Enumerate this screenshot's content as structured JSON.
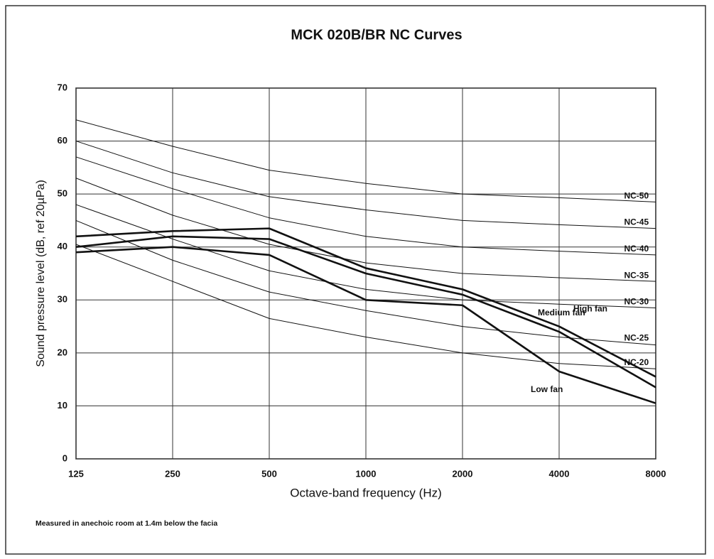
{
  "chart_data": {
    "type": "line",
    "title": "MCK 020B/BR  NC Curves",
    "xlabel": "Octave-band frequency (Hz)",
    "ylabel": "Sound pressure level (dB, ref 20µPa)",
    "note": "Measured in anechoic room at 1.4m below the facia",
    "categories": [
      "125",
      "250",
      "500",
      "1000",
      "2000",
      "4000",
      "8000"
    ],
    "ylim": [
      0,
      70
    ],
    "yticks": [
      0,
      10,
      20,
      30,
      40,
      50,
      60,
      70
    ],
    "grid": true,
    "series": [
      {
        "name": "NC-50",
        "color": "#111111",
        "line_width": 1,
        "values": [
          64,
          59,
          54.5,
          52,
          50,
          49.3,
          48.5
        ]
      },
      {
        "name": "NC-45",
        "color": "#111111",
        "line_width": 1,
        "values": [
          60,
          54,
          49.5,
          47,
          45,
          44.2,
          43.5
        ]
      },
      {
        "name": "NC-40",
        "color": "#111111",
        "line_width": 1,
        "values": [
          57,
          51,
          45.5,
          42,
          40,
          39.2,
          38.5
        ]
      },
      {
        "name": "NC-35",
        "color": "#111111",
        "line_width": 1,
        "values": [
          53,
          46,
          40.5,
          37,
          35,
          34.2,
          33.5
        ]
      },
      {
        "name": "NC-30",
        "color": "#111111",
        "line_width": 1,
        "values": [
          48,
          41.5,
          35.5,
          32,
          30,
          29.2,
          28.5
        ]
      },
      {
        "name": "NC-25",
        "color": "#111111",
        "line_width": 1,
        "values": [
          45,
          37.5,
          31.5,
          28,
          25,
          23,
          21.5
        ]
      },
      {
        "name": "NC-20",
        "color": "#111111",
        "line_width": 1,
        "values": [
          40.5,
          33.5,
          26.5,
          23,
          20,
          18,
          17
        ]
      },
      {
        "name": "High fan",
        "color": "#111111",
        "line_width": 2.6,
        "values": [
          42,
          43,
          43.5,
          36,
          32,
          25,
          15.5
        ]
      },
      {
        "name": "Medium fan",
        "color": "#111111",
        "line_width": 2.6,
        "values": [
          40,
          42,
          41.5,
          35,
          31,
          24,
          13.5
        ]
      },
      {
        "name": "Low fan",
        "color": "#111111",
        "line_width": 2.6,
        "values": [
          39,
          40,
          38.5,
          30,
          29,
          16.5,
          10.5
        ]
      }
    ]
  }
}
